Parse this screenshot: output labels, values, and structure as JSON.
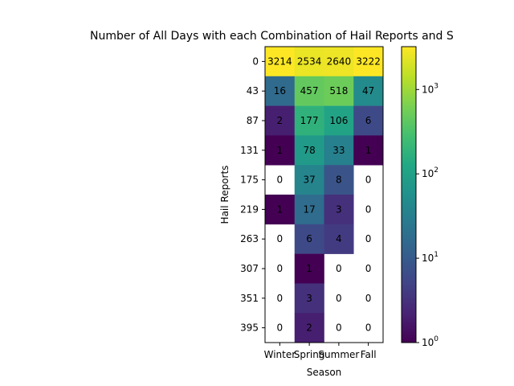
{
  "chart_data": {
    "type": "heatmap",
    "title": "Number of All Days with each Combination of Hail Reports and S",
    "xlabel": "Season",
    "ylabel": "Hail Reports",
    "x_categories": [
      "Winter",
      "Spring",
      "Summer",
      "Fall"
    ],
    "y_categories": [
      "0",
      "43",
      "87",
      "131",
      "175",
      "219",
      "263",
      "307",
      "351",
      "395"
    ],
    "values": [
      [
        3214,
        2534,
        2640,
        3222
      ],
      [
        16,
        457,
        518,
        47
      ],
      [
        2,
        177,
        106,
        6
      ],
      [
        1,
        78,
        33,
        1
      ],
      [
        0,
        37,
        8,
        0
      ],
      [
        1,
        17,
        3,
        0
      ],
      [
        0,
        6,
        4,
        0
      ],
      [
        0,
        1,
        0,
        0
      ],
      [
        0,
        3,
        0,
        0
      ],
      [
        0,
        2,
        0,
        0
      ]
    ],
    "color_scale": "log",
    "colormap": "viridis",
    "colorbar": {
      "range": [
        1,
        3222
      ],
      "ticks": [
        {
          "base": "10",
          "exp": "0"
        },
        {
          "base": "10",
          "exp": "1"
        },
        {
          "base": "10",
          "exp": "2"
        },
        {
          "base": "10",
          "exp": "3"
        }
      ]
    },
    "grid": false
  }
}
